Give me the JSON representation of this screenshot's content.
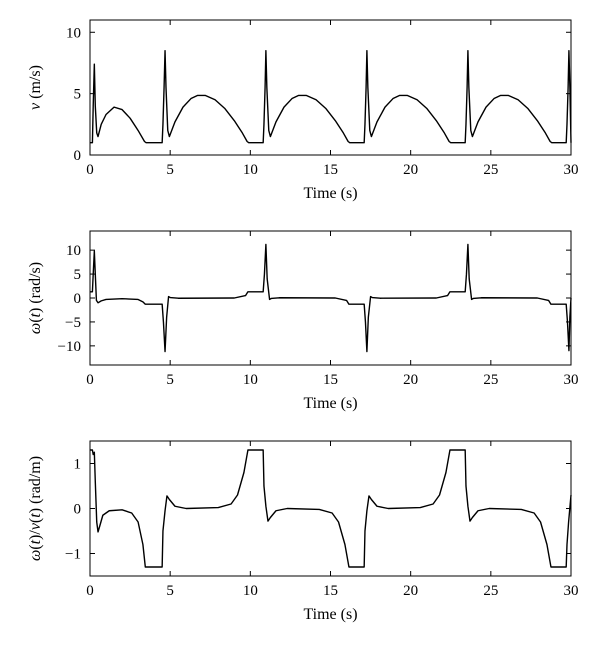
{
  "chart_data": [
    {
      "type": "line",
      "xlabel": "Time (s)",
      "ylabel_parts": [
        {
          "text": "v",
          "italic": true
        },
        {
          "text": " (m/s)",
          "italic": false
        }
      ],
      "xlim": [
        0,
        30
      ],
      "ylim": [
        0,
        11
      ],
      "xticks": [
        0,
        5,
        10,
        15,
        20,
        25,
        30
      ],
      "yticks": [
        0,
        5,
        10
      ],
      "series": [
        {
          "name": "v",
          "points": [
            [
              0,
              1
            ],
            [
              0.15,
              1
            ],
            [
              0.2,
              4
            ],
            [
              0.27,
              7.4
            ],
            [
              0.33,
              4
            ],
            [
              0.42,
              1.8
            ],
            [
              0.5,
              1.5
            ],
            [
              0.7,
              2.5
            ],
            [
              1.0,
              3.3
            ],
            [
              1.5,
              3.9
            ],
            [
              2.0,
              3.7
            ],
            [
              2.5,
              3.0
            ],
            [
              3.0,
              2.0
            ],
            [
              3.4,
              1.1
            ],
            [
              3.5,
              1
            ],
            [
              4.5,
              1
            ],
            [
              4.55,
              2.5
            ],
            [
              4.62,
              5.5
            ],
            [
              4.68,
              8.5
            ],
            [
              4.74,
              5.5
            ],
            [
              4.85,
              2.0
            ],
            [
              4.95,
              1.5
            ],
            [
              5.3,
              2.7
            ],
            [
              5.8,
              3.9
            ],
            [
              6.3,
              4.6
            ],
            [
              6.7,
              4.85
            ],
            [
              7.2,
              4.85
            ],
            [
              7.8,
              4.5
            ],
            [
              8.4,
              3.8
            ],
            [
              9.0,
              2.8
            ],
            [
              9.5,
              1.8
            ],
            [
              9.8,
              1.1
            ],
            [
              9.9,
              1
            ],
            [
              10.8,
              1
            ],
            [
              10.85,
              2.5
            ],
            [
              10.92,
              5.5
            ],
            [
              10.97,
              8.5
            ],
            [
              11.03,
              5.5
            ],
            [
              11.15,
              2.0
            ],
            [
              11.25,
              1.5
            ],
            [
              11.6,
              2.7
            ],
            [
              12.1,
              3.9
            ],
            [
              12.6,
              4.6
            ],
            [
              13.0,
              4.85
            ],
            [
              13.5,
              4.85
            ],
            [
              14.1,
              4.5
            ],
            [
              14.7,
              3.8
            ],
            [
              15.3,
              2.8
            ],
            [
              15.8,
              1.8
            ],
            [
              16.1,
              1.1
            ],
            [
              16.2,
              1
            ],
            [
              17.1,
              1
            ],
            [
              17.15,
              2.5
            ],
            [
              17.22,
              5.5
            ],
            [
              17.27,
              8.5
            ],
            [
              17.33,
              5.5
            ],
            [
              17.45,
              2.0
            ],
            [
              17.55,
              1.5
            ],
            [
              17.9,
              2.7
            ],
            [
              18.4,
              3.9
            ],
            [
              18.9,
              4.6
            ],
            [
              19.3,
              4.85
            ],
            [
              19.8,
              4.85
            ],
            [
              20.4,
              4.5
            ],
            [
              21.0,
              3.8
            ],
            [
              21.6,
              2.8
            ],
            [
              22.1,
              1.8
            ],
            [
              22.4,
              1.1
            ],
            [
              22.5,
              1
            ],
            [
              23.4,
              1
            ],
            [
              23.45,
              2.5
            ],
            [
              23.52,
              5.5
            ],
            [
              23.57,
              8.5
            ],
            [
              23.63,
              5.5
            ],
            [
              23.75,
              2.0
            ],
            [
              23.85,
              1.5
            ],
            [
              24.2,
              2.7
            ],
            [
              24.7,
              3.9
            ],
            [
              25.2,
              4.6
            ],
            [
              25.6,
              4.85
            ],
            [
              26.1,
              4.85
            ],
            [
              26.7,
              4.5
            ],
            [
              27.3,
              3.8
            ],
            [
              27.9,
              2.8
            ],
            [
              28.4,
              1.8
            ],
            [
              28.7,
              1.1
            ],
            [
              28.8,
              1
            ],
            [
              29.7,
              1
            ],
            [
              29.75,
              2.5
            ],
            [
              29.82,
              5.5
            ],
            [
              29.87,
              8.5
            ],
            [
              29.93,
              5.5
            ],
            [
              30,
              1
            ]
          ]
        }
      ]
    },
    {
      "type": "line",
      "xlabel": "Time (s)",
      "ylabel_parts": [
        {
          "text": "ω",
          "italic": true
        },
        {
          "text": "(",
          "italic": false
        },
        {
          "text": "t",
          "italic": true
        },
        {
          "text": ") (rad/s)",
          "italic": false
        }
      ],
      "xlim": [
        0,
        30
      ],
      "ylim": [
        -14,
        14
      ],
      "xticks": [
        0,
        5,
        10,
        15,
        20,
        25,
        30
      ],
      "yticks": [
        -10,
        -5,
        0,
        5,
        10
      ],
      "series": [
        {
          "name": "omega",
          "points": [
            [
              0,
              1.3
            ],
            [
              0.15,
              1.3
            ],
            [
              0.2,
              5
            ],
            [
              0.27,
              9.8
            ],
            [
              0.33,
              5
            ],
            [
              0.4,
              -0.5
            ],
            [
              0.5,
              -1.0
            ],
            [
              0.7,
              -0.6
            ],
            [
              1.0,
              -0.3
            ],
            [
              2.0,
              -0.15
            ],
            [
              3.0,
              -0.3
            ],
            [
              3.3,
              -0.8
            ],
            [
              3.45,
              -1.3
            ],
            [
              4.5,
              -1.3
            ],
            [
              4.58,
              -5
            ],
            [
              4.68,
              -11.2
            ],
            [
              4.78,
              -4
            ],
            [
              4.9,
              0.3
            ],
            [
              5.0,
              0.1
            ],
            [
              5.5,
              -0.05
            ],
            [
              9.0,
              0
            ],
            [
              9.7,
              0.5
            ],
            [
              9.85,
              1.3
            ],
            [
              10.8,
              1.3
            ],
            [
              10.88,
              5
            ],
            [
              10.97,
              11.2
            ],
            [
              11.05,
              4
            ],
            [
              11.2,
              -0.3
            ],
            [
              11.3,
              -0.1
            ],
            [
              11.8,
              0.05
            ],
            [
              15.3,
              0
            ],
            [
              16.0,
              -0.5
            ],
            [
              16.15,
              -1.3
            ],
            [
              17.1,
              -1.3
            ],
            [
              17.18,
              -5
            ],
            [
              17.27,
              -11.2
            ],
            [
              17.36,
              -4
            ],
            [
              17.5,
              0.3
            ],
            [
              17.6,
              0.1
            ],
            [
              18.1,
              -0.05
            ],
            [
              21.6,
              0
            ],
            [
              22.3,
              0.5
            ],
            [
              22.45,
              1.3
            ],
            [
              23.4,
              1.3
            ],
            [
              23.48,
              5
            ],
            [
              23.57,
              11.2
            ],
            [
              23.65,
              4
            ],
            [
              23.8,
              -0.3
            ],
            [
              23.9,
              -0.1
            ],
            [
              24.4,
              0.05
            ],
            [
              27.9,
              0
            ],
            [
              28.6,
              -0.5
            ],
            [
              28.75,
              -1.3
            ],
            [
              29.7,
              -1.3
            ],
            [
              29.78,
              -5
            ],
            [
              29.87,
              -11
            ],
            [
              29.93,
              -4
            ],
            [
              30,
              0
            ]
          ]
        }
      ]
    },
    {
      "type": "line",
      "xlabel": "Time (s)",
      "ylabel_parts": [
        {
          "text": "ω",
          "italic": true
        },
        {
          "text": "(",
          "italic": false
        },
        {
          "text": "t",
          "italic": true
        },
        {
          "text": ")/",
          "italic": false
        },
        {
          "text": "v",
          "italic": true
        },
        {
          "text": "(",
          "italic": false
        },
        {
          "text": "t",
          "italic": true
        },
        {
          "text": ") (rad/m)",
          "italic": false
        }
      ],
      "xlim": [
        0,
        30
      ],
      "ylim": [
        -1.5,
        1.5
      ],
      "xticks": [
        0,
        5,
        10,
        15,
        20,
        25,
        30
      ],
      "yticks": [
        -1,
        0,
        1
      ],
      "series": [
        {
          "name": "omega_over_v",
          "points": [
            [
              0,
              1.3
            ],
            [
              0.15,
              1.3
            ],
            [
              0.2,
              1.2
            ],
            [
              0.27,
              1.25
            ],
            [
              0.33,
              0.6
            ],
            [
              0.42,
              -0.3
            ],
            [
              0.5,
              -0.52
            ],
            [
              0.6,
              -0.4
            ],
            [
              0.8,
              -0.15
            ],
            [
              1.2,
              -0.05
            ],
            [
              2.0,
              -0.03
            ],
            [
              2.6,
              -0.1
            ],
            [
              3.0,
              -0.3
            ],
            [
              3.3,
              -0.8
            ],
            [
              3.45,
              -1.3
            ],
            [
              4.5,
              -1.3
            ],
            [
              4.55,
              -0.5
            ],
            [
              4.68,
              -0.05
            ],
            [
              4.8,
              0.28
            ],
            [
              4.95,
              0.2
            ],
            [
              5.3,
              0.05
            ],
            [
              6.0,
              0
            ],
            [
              8.0,
              0.02
            ],
            [
              8.8,
              0.1
            ],
            [
              9.2,
              0.3
            ],
            [
              9.6,
              0.8
            ],
            [
              9.85,
              1.3
            ],
            [
              10.8,
              1.3
            ],
            [
              10.85,
              0.5
            ],
            [
              10.97,
              0.05
            ],
            [
              11.1,
              -0.28
            ],
            [
              11.25,
              -0.2
            ],
            [
              11.6,
              -0.05
            ],
            [
              12.3,
              0
            ],
            [
              14.3,
              -0.02
            ],
            [
              15.1,
              -0.1
            ],
            [
              15.5,
              -0.3
            ],
            [
              15.9,
              -0.8
            ],
            [
              16.15,
              -1.3
            ],
            [
              17.1,
              -1.3
            ],
            [
              17.15,
              -0.5
            ],
            [
              17.27,
              -0.05
            ],
            [
              17.4,
              0.28
            ],
            [
              17.55,
              0.2
            ],
            [
              17.9,
              0.05
            ],
            [
              18.6,
              0
            ],
            [
              20.6,
              0.02
            ],
            [
              21.4,
              0.1
            ],
            [
              21.8,
              0.3
            ],
            [
              22.2,
              0.8
            ],
            [
              22.45,
              1.3
            ],
            [
              23.4,
              1.3
            ],
            [
              23.45,
              0.5
            ],
            [
              23.57,
              0.05
            ],
            [
              23.7,
              -0.28
            ],
            [
              23.85,
              -0.2
            ],
            [
              24.2,
              -0.05
            ],
            [
              24.9,
              0
            ],
            [
              26.9,
              -0.02
            ],
            [
              27.7,
              -0.1
            ],
            [
              28.1,
              -0.3
            ],
            [
              28.5,
              -0.8
            ],
            [
              28.75,
              -1.3
            ],
            [
              29.7,
              -1.3
            ],
            [
              29.75,
              -0.8
            ],
            [
              29.85,
              -0.3
            ],
            [
              30,
              0.3
            ]
          ]
        }
      ]
    }
  ]
}
